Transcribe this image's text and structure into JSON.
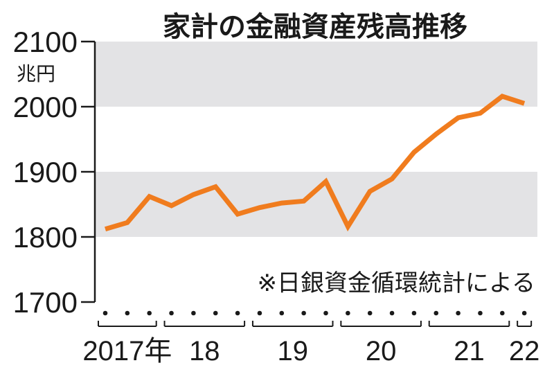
{
  "chart_data": {
    "type": "line",
    "title": "家計の金融資産残高推移",
    "ylabel": "兆円",
    "note": "※日銀資金循環統計による",
    "ylim": [
      1700,
      2100
    ],
    "yticks": [
      "2100",
      "2000",
      "1900",
      "1800",
      "1700"
    ],
    "band_color": "#e3e3e5",
    "line_color": "#f07c1e",
    "year_labels": [
      "2017年",
      "18",
      "19",
      "20",
      "21",
      "22"
    ],
    "year_quarters": [
      3,
      4,
      4,
      4,
      4,
      1
    ],
    "series": [
      {
        "values": [
          1812,
          1822,
          1862,
          1848,
          1865,
          1877,
          1835,
          1845,
          1852,
          1855,
          1885,
          1816,
          1870,
          1889,
          1930,
          1958,
          1983,
          1990,
          2016,
          2005
        ]
      }
    ]
  }
}
